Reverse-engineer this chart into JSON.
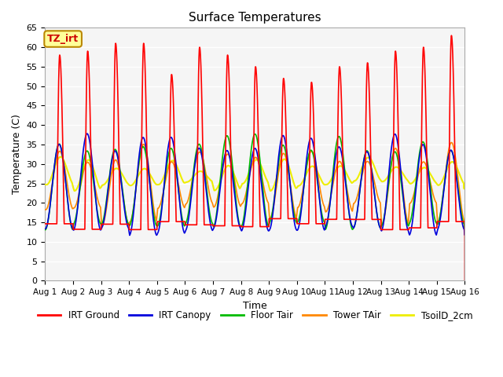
{
  "title": "Surface Temperatures",
  "xlabel": "Time",
  "ylabel": "Temperature (C)",
  "ylim": [
    0,
    65
  ],
  "yticks": [
    0,
    5,
    10,
    15,
    20,
    25,
    30,
    35,
    40,
    45,
    50,
    55,
    60,
    65
  ],
  "series": {
    "IRT Ground": {
      "color": "#ff0000",
      "lw": 1.2
    },
    "IRT Canopy": {
      "color": "#0000dd",
      "lw": 1.2
    },
    "Floor Tair": {
      "color": "#00bb00",
      "lw": 1.2
    },
    "Tower TAir": {
      "color": "#ff8800",
      "lw": 1.2
    },
    "TsoilD_2cm": {
      "color": "#eeee00",
      "lw": 1.5
    }
  },
  "irt_ground_peaks": [
    58,
    59,
    61,
    61,
    53,
    60,
    58,
    55,
    52,
    51,
    55,
    56,
    59,
    60,
    63
  ],
  "annotation_text": "TZ_irt",
  "annotation_color": "#cc0000",
  "annotation_bg": "#ffff99",
  "annotation_border": "#bb8800",
  "background_color": "#ffffff",
  "plot_bg_color": "#f5f5f5",
  "grid_color": "#dddddd"
}
